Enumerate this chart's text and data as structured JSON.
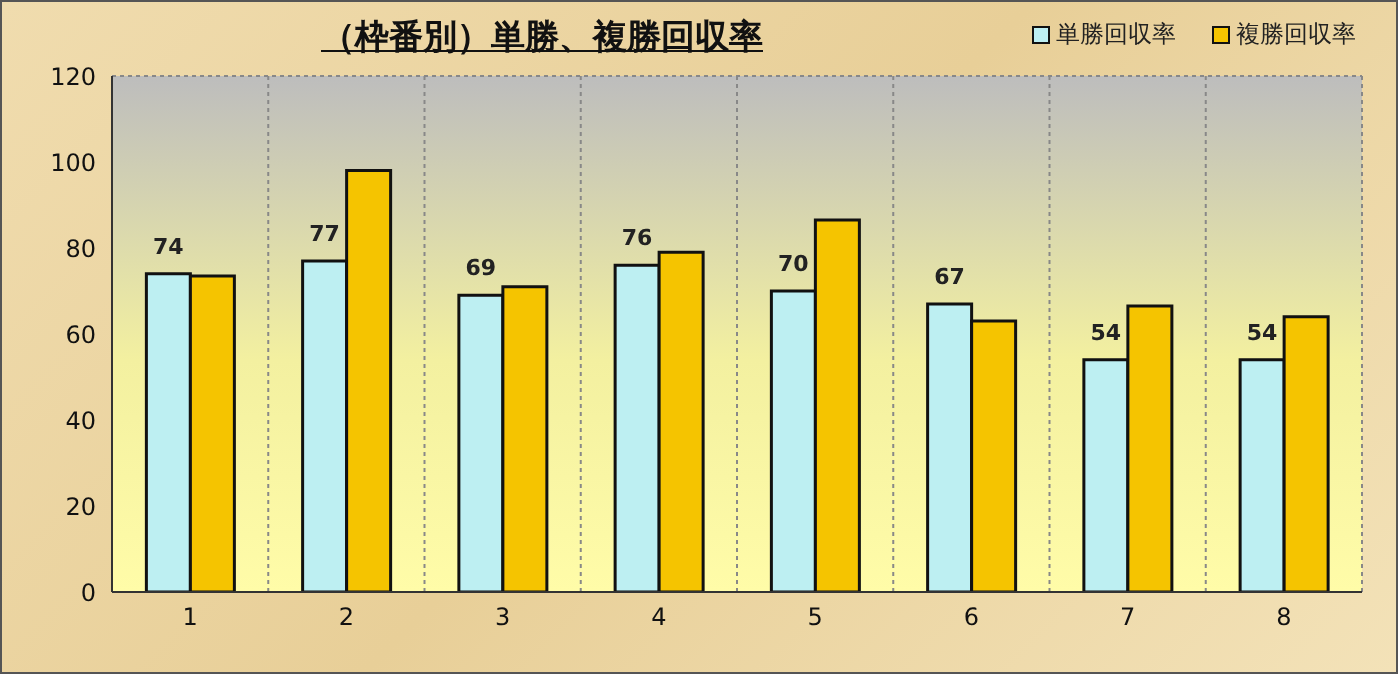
{
  "chart_data": {
    "type": "bar",
    "title": "（枠番別）単勝、複勝回収率",
    "categories": [
      "1",
      "2",
      "3",
      "4",
      "5",
      "6",
      "7",
      "8"
    ],
    "series": [
      {
        "name": "単勝回収率",
        "color": "#bdeff2",
        "values": [
          74,
          77,
          69,
          76,
          70,
          67,
          54,
          54
        ],
        "value_labels": [
          "74",
          "77",
          "69",
          "76",
          "70",
          "67",
          "54",
          "54"
        ]
      },
      {
        "name": "複勝回収率",
        "color": "#f5c400",
        "values": [
          73.5,
          98,
          71,
          79,
          86.5,
          63,
          66.5,
          64
        ]
      }
    ],
    "ylim": [
      0,
      120
    ],
    "yticks": [
      0,
      20,
      40,
      60,
      80,
      100,
      120
    ],
    "grid": true,
    "legend": "top right"
  }
}
